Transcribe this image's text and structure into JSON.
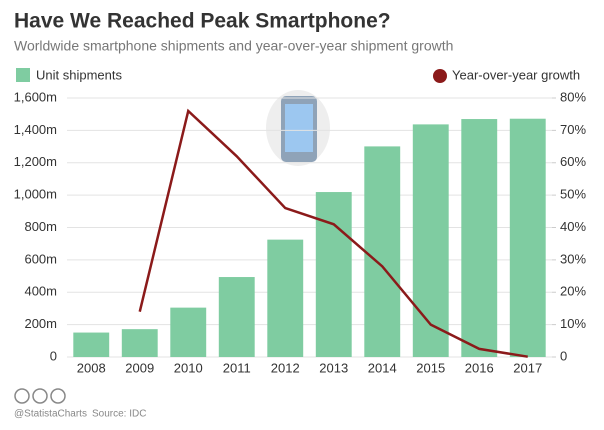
{
  "chart_data": {
    "type": "bar_line",
    "title": "Have We Reached Peak Smartphone?",
    "subtitle": "Worldwide smartphone shipments and year-over-year shipment growth",
    "source": "Source: IDC",
    "credit": "@StatistaCharts",
    "categories": [
      "2008",
      "2009",
      "2010",
      "2011",
      "2012",
      "2013",
      "2014",
      "2015",
      "2016",
      "2017"
    ],
    "series": [
      {
        "name": "Unit shipments",
        "color": "#7fcca1",
        "values": [
          151,
          172,
          305,
          494,
          725,
          1019,
          1301,
          1437,
          1470,
          1472
        ]
      },
      {
        "name": "Year-over-year growth",
        "color": "#8b1a1a",
        "axis": "y2",
        "values": [
          null,
          14,
          76,
          62,
          46,
          41,
          28,
          10,
          2.5,
          0.1
        ]
      }
    ],
    "ylim": [
      0,
      1600
    ],
    "yticks": [
      0,
      {
        "value": 200,
        "label": "200m"
      },
      {
        "value": 400,
        "label": "400m"
      },
      {
        "value": 600,
        "label": "600m"
      },
      {
        "value": 800,
        "label": "800m"
      },
      {
        "value": 1000,
        "label": "1,000m"
      },
      {
        "value": 1200,
        "label": "1,200m"
      },
      {
        "value": 1400,
        "label": "1,400m"
      },
      {
        "value": 1600,
        "label": "1,600m"
      }
    ],
    "y2lim": [
      0,
      80
    ],
    "y2ticks": [
      0,
      {
        "value": 10,
        "label": "10%"
      },
      {
        "value": 20,
        "label": "20%"
      },
      {
        "value": 30,
        "label": "30%"
      },
      {
        "value": 40,
        "label": "40%"
      },
      {
        "value": 50,
        "label": "50%"
      },
      {
        "value": 60,
        "label": "60%"
      },
      {
        "value": 70,
        "label": "70%"
      },
      {
        "value": 80,
        "label": "80%"
      }
    ],
    "grid": true
  }
}
